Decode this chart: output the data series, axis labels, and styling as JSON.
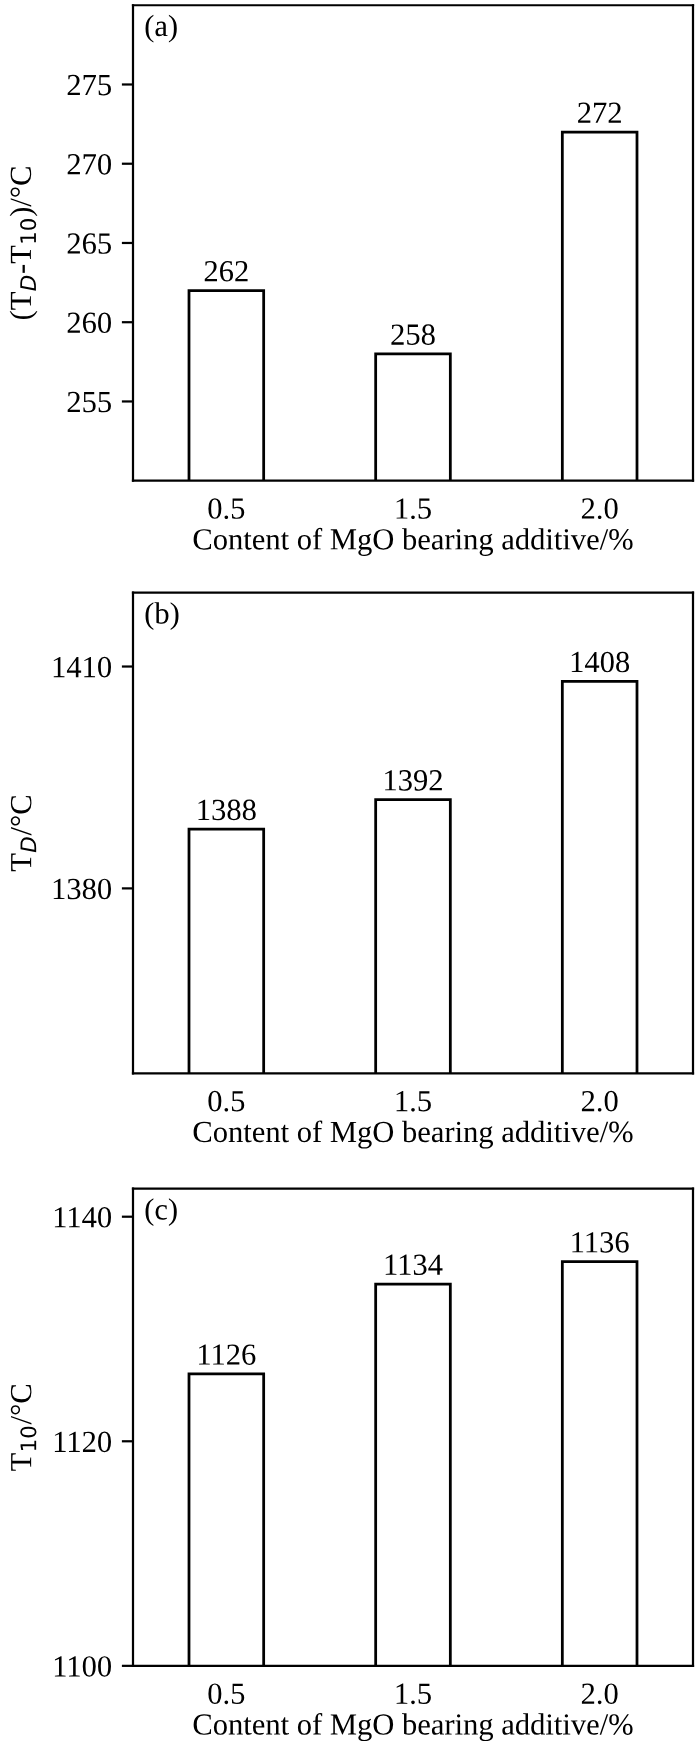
{
  "chart_data": [
    {
      "type": "bar",
      "categories": [
        "0.5",
        "1.5",
        "2.0"
      ],
      "values": [
        262,
        258,
        272
      ],
      "color": "#ffffff",
      "xlabel": "Content of MgO bearing additive/%",
      "ylabel": "(T$_{D}$-T$_{10}$)/°C",
      "ylim": [
        250,
        280
      ],
      "yticks": [
        255,
        260,
        265,
        270,
        275
      ],
      "data_labels": true,
      "annotations": [
        "(a)"
      ]
    },
    {
      "type": "bar",
      "categories": [
        "0.5",
        "1.5",
        "2.0"
      ],
      "values": [
        1388,
        1392,
        1408
      ],
      "color": "#ffffff",
      "xlabel": "Content of MgO bearing additive/%",
      "ylabel": "T$_{D}$/°C",
      "ylim": [
        1355,
        1420
      ],
      "yticks": [
        1380,
        1410
      ],
      "data_labels": true,
      "annotations": [
        "(b)"
      ]
    },
    {
      "type": "bar",
      "categories": [
        "0.5",
        "1.5",
        "2.0"
      ],
      "values": [
        1126,
        1134,
        1136
      ],
      "color": "#ffffff",
      "xlabel": "Content of MgO bearing additive/%",
      "ylabel": "T$_{10}$/°C",
      "ylim": [
        1100,
        1142.5
      ],
      "yticks": [
        1100,
        1120,
        1140
      ],
      "data_labels": true,
      "annotations": [
        "(c)"
      ]
    }
  ]
}
